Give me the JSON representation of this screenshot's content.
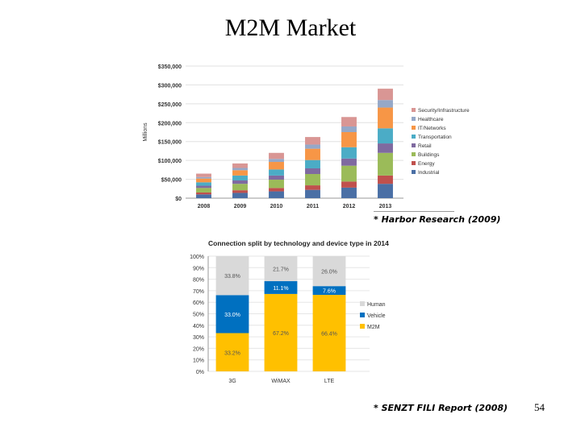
{
  "slide": {
    "title": "M2M Market",
    "source1": "* Harbor Research (2009)",
    "source2": "* SENZT FILI Report (2008)",
    "page_number": "54"
  },
  "chart_data": [
    {
      "type": "bar",
      "stacked": true,
      "title": "",
      "ylabel": "Millions",
      "ylim": [
        0,
        350000
      ],
      "ytick_values": [
        0,
        50000,
        100000,
        150000,
        200000,
        250000,
        300000,
        350000
      ],
      "ytick_labels": [
        "$0",
        "$50,000",
        "$100,000",
        "$150,000",
        "$200,000",
        "$250,000",
        "$300,000",
        "$350,000"
      ],
      "grid": true,
      "legend": "right",
      "categories": [
        "2008",
        "2009",
        "2010",
        "2011",
        "2012",
        "2013"
      ],
      "series": [
        {
          "name": "Industrial",
          "color": "#4a6fa5",
          "values": [
            10000,
            14000,
            18000,
            22000,
            28000,
            38000
          ]
        },
        {
          "name": "Energy",
          "color": "#c0504d",
          "values": [
            5000,
            7000,
            9000,
            12000,
            16000,
            22000
          ]
        },
        {
          "name": "Buildings",
          "color": "#9bbb59",
          "values": [
            12000,
            17000,
            22000,
            30000,
            42000,
            60000
          ]
        },
        {
          "name": "Retail",
          "color": "#7f6aa0",
          "values": [
            6000,
            9000,
            11000,
            15000,
            19000,
            25000
          ]
        },
        {
          "name": "Transportation",
          "color": "#4bacc6",
          "values": [
            9000,
            13000,
            16000,
            22000,
            30000,
            40000
          ]
        },
        {
          "name": "IT/Networks",
          "color": "#f79646",
          "values": [
            10000,
            14000,
            20000,
            30000,
            40000,
            55000
          ]
        },
        {
          "name": "Healthcare",
          "color": "#95a8c8",
          "values": [
            4000,
            6000,
            8000,
            11000,
            15000,
            20000
          ]
        },
        {
          "name": "Security/Infrastructure",
          "color": "#d99694",
          "values": [
            9000,
            12000,
            16000,
            20000,
            25000,
            30000
          ]
        }
      ]
    },
    {
      "type": "bar",
      "stacked": true,
      "title": "Connection split by technology and device type in 2014",
      "xlabel": "",
      "ylabel": "",
      "ylim": [
        0,
        100
      ],
      "ytick_values": [
        0,
        10,
        20,
        30,
        40,
        50,
        60,
        70,
        80,
        90,
        100
      ],
      "ytick_labels": [
        "0%",
        "10%",
        "20%",
        "30%",
        "40%",
        "50%",
        "60%",
        "70%",
        "80%",
        "90%",
        "100%"
      ],
      "grid": true,
      "legend": "right",
      "categories": [
        "3G",
        "WiMAX",
        "LTE"
      ],
      "series": [
        {
          "name": "M2M",
          "color": "#ffc000",
          "values": [
            33.2,
            67.2,
            66.4
          ],
          "labels": [
            "33.2%",
            "67.2%",
            "66.4%"
          ]
        },
        {
          "name": "Vehicle",
          "color": "#0070c0",
          "values": [
            33.0,
            11.1,
            7.6
          ],
          "labels": [
            "33.0%",
            "11.1%",
            "7.6%"
          ]
        },
        {
          "name": "Human",
          "color": "#d9d9d9",
          "values": [
            33.8,
            21.7,
            26.0
          ],
          "labels": [
            "33.8%",
            "21.7%",
            "26.0%"
          ]
        }
      ]
    }
  ]
}
